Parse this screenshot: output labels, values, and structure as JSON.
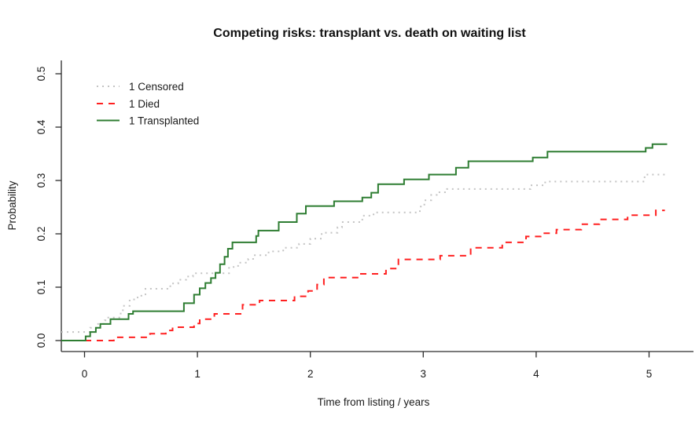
{
  "title": "Competing risks: transplant vs. death on waiting list",
  "axes": {
    "x": {
      "label": "Time from listing / years",
      "tick_values": [
        0,
        1,
        2,
        3,
        4,
        5
      ],
      "tick_labels": [
        "0",
        "1",
        "2",
        "3",
        "4",
        "5"
      ]
    },
    "y": {
      "label": "Probability",
      "tick_values": [
        0.0,
        0.1,
        0.2,
        0.3,
        0.4,
        0.5
      ],
      "tick_labels": [
        "0.0",
        "0.1",
        "0.2",
        "0.3",
        "0.4",
        "0.5"
      ]
    }
  },
  "legend": {
    "items": [
      {
        "label": "1 Censored",
        "color": "#c4c4c4",
        "linestyle": "dotted"
      },
      {
        "label": "1 Died",
        "color": "#ff2020",
        "linestyle": "dashed"
      },
      {
        "label": "1 Transplanted",
        "color": "#2e7d32",
        "linestyle": "solid"
      }
    ]
  },
  "chart_data": {
    "type": "line",
    "step": true,
    "title": "Competing risks: transplant vs. death on waiting list",
    "xlabel": "Time from listing / years",
    "ylabel": "Probability",
    "xlim": [
      -0.21,
      5.39
    ],
    "ylim": [
      -0.02,
      0.53
    ],
    "grid": false,
    "legend_position": "top-left-inside",
    "series": [
      {
        "name": "1 Censored",
        "color": "#c4c4c4",
        "linestyle": "dotted",
        "baseline": 0.016,
        "end_time": 5.14,
        "steps": [
          [
            0.05,
            0.024
          ],
          [
            0.12,
            0.031
          ],
          [
            0.18,
            0.038
          ],
          [
            0.2,
            0.043
          ],
          [
            0.32,
            0.055
          ],
          [
            0.34,
            0.065
          ],
          [
            0.4,
            0.077
          ],
          [
            0.47,
            0.084
          ],
          [
            0.54,
            0.097
          ],
          [
            0.76,
            0.107
          ],
          [
            0.83,
            0.114
          ],
          [
            0.9,
            0.12
          ],
          [
            0.96,
            0.126
          ],
          [
            1.28,
            0.138
          ],
          [
            1.36,
            0.146
          ],
          [
            1.45,
            0.153
          ],
          [
            1.5,
            0.16
          ],
          [
            1.63,
            0.167
          ],
          [
            1.76,
            0.174
          ],
          [
            1.9,
            0.181
          ],
          [
            2.0,
            0.191
          ],
          [
            2.1,
            0.202
          ],
          [
            2.24,
            0.212
          ],
          [
            2.28,
            0.222
          ],
          [
            2.46,
            0.234
          ],
          [
            2.56,
            0.24
          ],
          [
            2.97,
            0.251
          ],
          [
            3.01,
            0.263
          ],
          [
            3.07,
            0.273
          ],
          [
            3.12,
            0.278
          ],
          [
            3.21,
            0.284
          ],
          [
            3.95,
            0.291
          ],
          [
            4.08,
            0.298
          ],
          [
            4.96,
            0.311
          ]
        ]
      },
      {
        "name": "1 Died",
        "color": "#ff2020",
        "linestyle": "dashed",
        "baseline": 0,
        "end_time": 5.14,
        "steps": [
          [
            0.26,
            0.006
          ],
          [
            0.58,
            0.013
          ],
          [
            0.72,
            0.019
          ],
          [
            0.78,
            0.025
          ],
          [
            0.97,
            0.032
          ],
          [
            1.02,
            0.04
          ],
          [
            1.15,
            0.05
          ],
          [
            1.4,
            0.067
          ],
          [
            1.55,
            0.075
          ],
          [
            1.86,
            0.083
          ],
          [
            1.98,
            0.093
          ],
          [
            2.06,
            0.105
          ],
          [
            2.12,
            0.118
          ],
          [
            2.44,
            0.125
          ],
          [
            2.67,
            0.135
          ],
          [
            2.78,
            0.152
          ],
          [
            3.15,
            0.159
          ],
          [
            3.42,
            0.174
          ],
          [
            3.7,
            0.184
          ],
          [
            3.91,
            0.195
          ],
          [
            4.04,
            0.201
          ],
          [
            4.18,
            0.208
          ],
          [
            4.4,
            0.218
          ],
          [
            4.56,
            0.227
          ],
          [
            4.81,
            0.235
          ],
          [
            5.06,
            0.244
          ]
        ]
      },
      {
        "name": "1 Transplanted",
        "color": "#2e7d32",
        "linestyle": "solid",
        "baseline": 0,
        "end_time": 5.16,
        "steps": [
          [
            0.01,
            0.008
          ],
          [
            0.05,
            0.016
          ],
          [
            0.1,
            0.024
          ],
          [
            0.14,
            0.031
          ],
          [
            0.23,
            0.04
          ],
          [
            0.39,
            0.05
          ],
          [
            0.43,
            0.055
          ],
          [
            0.88,
            0.07
          ],
          [
            0.97,
            0.086
          ],
          [
            1.02,
            0.098
          ],
          [
            1.07,
            0.108
          ],
          [
            1.12,
            0.117
          ],
          [
            1.16,
            0.127
          ],
          [
            1.2,
            0.143
          ],
          [
            1.24,
            0.157
          ],
          [
            1.27,
            0.172
          ],
          [
            1.31,
            0.184
          ],
          [
            1.52,
            0.196
          ],
          [
            1.54,
            0.206
          ],
          [
            1.72,
            0.222
          ],
          [
            1.88,
            0.238
          ],
          [
            1.96,
            0.252
          ],
          [
            2.21,
            0.261
          ],
          [
            2.46,
            0.268
          ],
          [
            2.54,
            0.277
          ],
          [
            2.6,
            0.293
          ],
          [
            2.83,
            0.302
          ],
          [
            3.05,
            0.311
          ],
          [
            3.29,
            0.324
          ],
          [
            3.4,
            0.336
          ],
          [
            3.97,
            0.343
          ],
          [
            4.1,
            0.354
          ],
          [
            4.97,
            0.361
          ],
          [
            5.03,
            0.368
          ]
        ]
      }
    ]
  }
}
